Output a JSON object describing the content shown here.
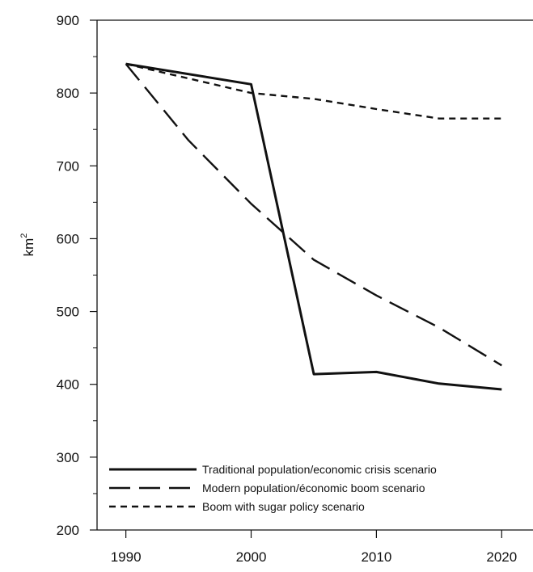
{
  "chart_data": {
    "type": "line",
    "title": "",
    "xlabel": "",
    "ylabel": "km",
    "ylabel_superscript": "2",
    "xlim": [
      1987.7,
      2022.5
    ],
    "ylim": [
      200,
      900
    ],
    "x_ticks": [
      1990,
      2000,
      2010,
      2020
    ],
    "y_ticks": [
      200,
      300,
      400,
      500,
      600,
      700,
      800,
      900
    ],
    "legend_position": "bottom-left",
    "grid": false,
    "series": [
      {
        "name": "Traditional population/economic crisis scenario",
        "style": "solid",
        "x": [
          1990,
          2000,
          2005,
          2010,
          2015,
          2020
        ],
        "y": [
          840,
          812,
          414,
          417,
          401,
          393
        ]
      },
      {
        "name": "Modern population/économic boom scenario",
        "style": "long-dash",
        "x": [
          1990,
          1995,
          2000,
          2005,
          2010,
          2015,
          2020
        ],
        "y": [
          840,
          735,
          648,
          571,
          522,
          478,
          426
        ]
      },
      {
        "name": "Boom with sugar policy scenario",
        "style": "short-dash",
        "x": [
          1990,
          1995,
          2000,
          2005,
          2010,
          2015,
          2020
        ],
        "y": [
          840,
          820,
          800,
          792,
          778,
          765,
          765
        ]
      }
    ]
  }
}
